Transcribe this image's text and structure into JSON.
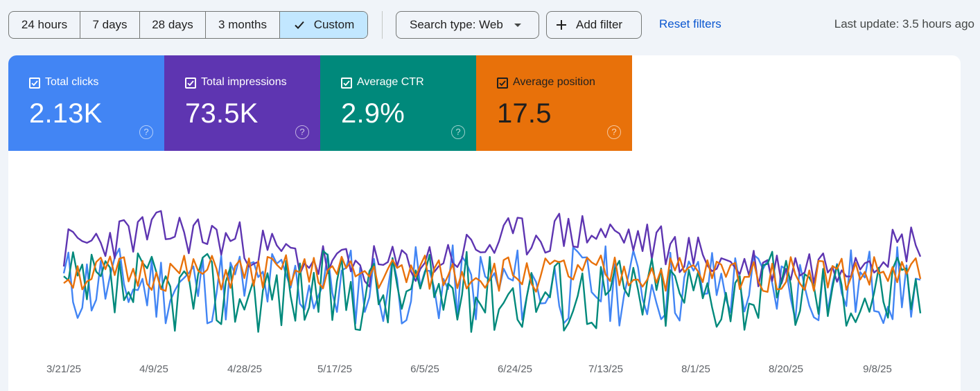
{
  "filters": {
    "date_ranges": [
      {
        "label": "24 hours",
        "active": false
      },
      {
        "label": "7 days",
        "active": false
      },
      {
        "label": "28 days",
        "active": false
      },
      {
        "label": "3 months",
        "active": false
      },
      {
        "label": "Custom",
        "active": true
      }
    ],
    "search_type": "Search type: Web",
    "add_filter": "Add filter",
    "reset": "Reset filters",
    "last_update": "Last update: 3.5 hours ago"
  },
  "metrics": [
    {
      "label": "Total clicks",
      "value": "2.13K",
      "color": "#4285f4",
      "checked": true
    },
    {
      "label": "Total impressions",
      "value": "73.5K",
      "color": "#5e35b1",
      "checked": true
    },
    {
      "label": "Average CTR",
      "value": "2.9%",
      "color": "#00897b",
      "checked": true
    },
    {
      "label": "Average position",
      "value": "17.5",
      "color": "#e8710a",
      "checked": true
    }
  ],
  "help_glyph": "?",
  "chart_data": {
    "type": "line",
    "x_tick_labels": [
      "3/21/25",
      "4/9/25",
      "4/28/25",
      "5/17/25",
      "6/5/25",
      "6/24/25",
      "7/13/25",
      "8/1/25",
      "8/20/25",
      "9/8/25"
    ],
    "x_range": [
      "3/20/25",
      "9/22/25"
    ],
    "grid": false,
    "legend": "none",
    "series": [
      {
        "name": "Total clicks",
        "color": "#4285f4",
        "amplitude": 0.55,
        "seed": 11,
        "base": 0.42
      },
      {
        "name": "Total impressions",
        "color": "#5e35b1",
        "amplitude": 0.3,
        "seed": 23,
        "base": 0.66
      },
      {
        "name": "Average CTR",
        "color": "#00897b",
        "amplitude": 0.55,
        "seed": 37,
        "base": 0.38
      },
      {
        "name": "Average position",
        "color": "#e8710a",
        "amplitude": 0.25,
        "seed": 51,
        "base": 0.5
      }
    ]
  }
}
